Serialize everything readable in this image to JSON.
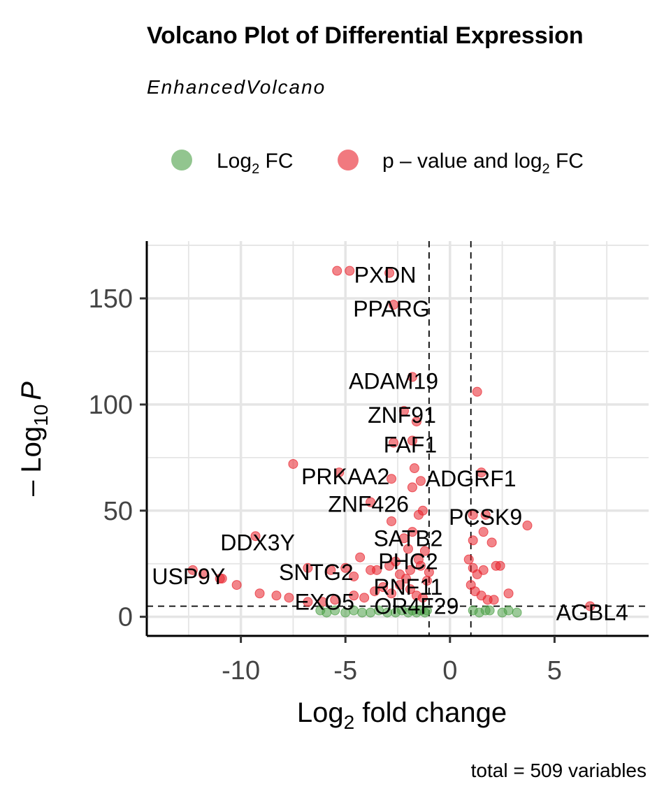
{
  "chart_data": {
    "type": "scatter",
    "title": "Volcano Plot of Differential Expression",
    "subtitle": "EnhancedVolcano",
    "xlabel_main": "Log",
    "xlabel_sub": "2",
    "xlabel_rest": " fold change",
    "ylabel_prefix": "– Log",
    "ylabel_sub": "10",
    "ylabel_var": "P",
    "caption": "total = 509 variables",
    "xlim": [
      -14.5,
      9.5
    ],
    "ylim": [
      -9,
      177
    ],
    "x_ticks": [
      -10,
      -5,
      0,
      5
    ],
    "x_tick_labels": [
      "-10",
      "-5",
      "0",
      "5"
    ],
    "y_ticks": [
      0,
      50,
      100,
      150
    ],
    "y_tick_labels": [
      "0",
      "50",
      "100",
      "150"
    ],
    "grid": true,
    "fc_cutoff": 1,
    "p_cutoff_neglog10": 5,
    "legend_position": "top",
    "legend": [
      {
        "key": "fc",
        "label_main": "Log",
        "label_sub": "2",
        "label_rest": " FC",
        "color": "#4a9e45"
      },
      {
        "key": "both",
        "label_main": "p – value and log",
        "label_sub": "2",
        "label_rest": " FC",
        "color": "#e8202a"
      }
    ],
    "series": [
      {
        "key": "both",
        "color": "#e8202a",
        "points": [
          [
            -5.4,
            163
          ],
          [
            -4.8,
            163
          ],
          [
            -2.9,
            162
          ],
          [
            -2.7,
            147
          ],
          [
            -1.8,
            113
          ],
          [
            1.3,
            106
          ],
          [
            -2.2,
            97
          ],
          [
            -1.6,
            92
          ],
          [
            -2.7,
            82
          ],
          [
            -1.8,
            83
          ],
          [
            -7.5,
            72
          ],
          [
            -5.3,
            68
          ],
          [
            -1.7,
            70
          ],
          [
            -1.4,
            64
          ],
          [
            -2.8,
            65
          ],
          [
            -1.8,
            61
          ],
          [
            1.5,
            68
          ],
          [
            -3.8,
            54
          ],
          [
            -1.3,
            50
          ],
          [
            -1.5,
            48
          ],
          [
            -2.8,
            45
          ],
          [
            1.1,
            48
          ],
          [
            1.7,
            48
          ],
          [
            3.7,
            43
          ],
          [
            -1.8,
            40
          ],
          [
            -2.2,
            37
          ],
          [
            1.6,
            40
          ],
          [
            1.1,
            36
          ],
          [
            2.0,
            35
          ],
          [
            -9.3,
            38
          ],
          [
            -2.0,
            32
          ],
          [
            -1.2,
            31
          ],
          [
            -4.3,
            28
          ],
          [
            -2.6,
            26
          ],
          [
            -1.5,
            27
          ],
          [
            0.9,
            27
          ],
          [
            -12.3,
            22
          ],
          [
            -11.8,
            20
          ],
          [
            -11.0,
            18
          ],
          [
            -10.9,
            18
          ],
          [
            -10.2,
            15
          ],
          [
            -6.8,
            23
          ],
          [
            -5.7,
            22
          ],
          [
            -5.0,
            23
          ],
          [
            -4.6,
            19
          ],
          [
            -3.8,
            22
          ],
          [
            -3.5,
            22
          ],
          [
            -2.9,
            24
          ],
          [
            -2.4,
            20
          ],
          [
            -1.9,
            22
          ],
          [
            -1.4,
            24
          ],
          [
            -1.0,
            21
          ],
          [
            1.1,
            23
          ],
          [
            1.3,
            20
          ],
          [
            1.6,
            22
          ],
          [
            2.2,
            24
          ],
          [
            2.4,
            24
          ],
          [
            -9.1,
            11
          ],
          [
            -8.3,
            10
          ],
          [
            -7.7,
            9
          ],
          [
            -6.8,
            7
          ],
          [
            -6.1,
            7
          ],
          [
            -5.5,
            8
          ],
          [
            -4.6,
            10
          ],
          [
            -4.1,
            9
          ],
          [
            -3.6,
            12
          ],
          [
            -3.2,
            14
          ],
          [
            -2.8,
            11
          ],
          [
            -2.4,
            15
          ],
          [
            -2.1,
            18
          ],
          [
            -1.9,
            13
          ],
          [
            -1.6,
            10
          ],
          [
            -1.3,
            9
          ],
          [
            -1.1,
            17
          ],
          [
            1.0,
            15
          ],
          [
            1.2,
            12
          ],
          [
            1.5,
            10
          ],
          [
            1.8,
            8
          ],
          [
            2.1,
            8
          ],
          [
            2.8,
            11
          ],
          [
            6.7,
            5
          ]
        ]
      },
      {
        "key": "fc",
        "color": "#4a9e45",
        "points": [
          [
            -6.2,
            3
          ],
          [
            -5.9,
            2
          ],
          [
            -5.5,
            3
          ],
          [
            -5.0,
            2
          ],
          [
            -4.6,
            3
          ],
          [
            -4.2,
            2
          ],
          [
            -3.8,
            2
          ],
          [
            -3.4,
            3
          ],
          [
            -3.0,
            2
          ],
          [
            -2.6,
            2
          ],
          [
            -2.3,
            3
          ],
          [
            -2.0,
            2
          ],
          [
            -1.8,
            3
          ],
          [
            -1.6,
            2
          ],
          [
            -1.4,
            3
          ],
          [
            -1.2,
            2
          ],
          [
            -1.1,
            3
          ],
          [
            1.1,
            3
          ],
          [
            1.4,
            2
          ],
          [
            1.7,
            3
          ],
          [
            1.9,
            3
          ],
          [
            2.5,
            2
          ],
          [
            2.8,
            3
          ],
          [
            3.2,
            2
          ]
        ]
      }
    ],
    "labels": [
      {
        "text": "PXDN",
        "x": -3.1,
        "y": 161
      },
      {
        "text": "PPARG",
        "x": -2.8,
        "y": 145
      },
      {
        "text": "ADAM19",
        "x": -2.7,
        "y": 111
      },
      {
        "text": "ZNF91",
        "x": -2.3,
        "y": 95
      },
      {
        "text": "FAF1",
        "x": -1.9,
        "y": 81
      },
      {
        "text": "PRKAA2",
        "x": -5.0,
        "y": 66
      },
      {
        "text": "ADGRF1",
        "x": 1.0,
        "y": 65
      },
      {
        "text": "ZNF426",
        "x": -3.9,
        "y": 53
      },
      {
        "text": "PCSK9",
        "x": 1.7,
        "y": 47
      },
      {
        "text": "SATB2",
        "x": -2.0,
        "y": 37
      },
      {
        "text": "DDX3Y",
        "x": -9.2,
        "y": 35
      },
      {
        "text": "PHC2",
        "x": -2.0,
        "y": 26
      },
      {
        "text": "SNTG2",
        "x": -6.4,
        "y": 21
      },
      {
        "text": "USP9Y",
        "x": -12.5,
        "y": 19
      },
      {
        "text": "RNF11",
        "x": -2.0,
        "y": 14
      },
      {
        "text": "EXO5",
        "x": -6.0,
        "y": 7
      },
      {
        "text": "OR4F29",
        "x": -1.6,
        "y": 5
      },
      {
        "text": "AGBL4",
        "x": 6.8,
        "y": 2
      }
    ]
  }
}
